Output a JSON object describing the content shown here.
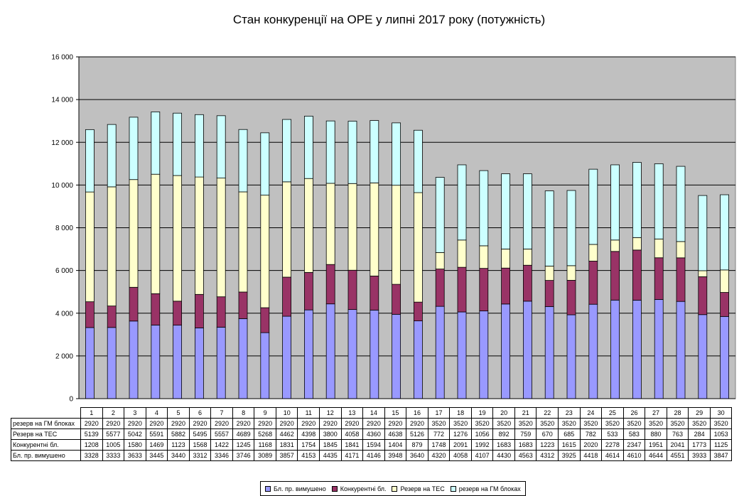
{
  "chart_data": {
    "type": "bar",
    "stacked": true,
    "title": "Стан конкуренції на ОРЕ  у липні  2017 року (потужність)",
    "ylim": [
      0,
      16000
    ],
    "yticks": [
      "0",
      "2 000",
      "4 000",
      "6 000",
      "8 000",
      "10 000",
      "12 000",
      "14 000",
      "16 000"
    ],
    "ytick_values": [
      0,
      2000,
      4000,
      6000,
      8000,
      10000,
      12000,
      14000,
      16000
    ],
    "grid": true,
    "legend_position": "bottom",
    "categories": [
      "1",
      "2",
      "3",
      "4",
      "5",
      "6",
      "7",
      "8",
      "9",
      "10",
      "11",
      "12",
      "13",
      "14",
      "15",
      "16",
      "17",
      "18",
      "19",
      "20",
      "21",
      "22",
      "23",
      "24",
      "25",
      "26",
      "27",
      "28",
      "29",
      "30"
    ],
    "series": [
      {
        "name": "Бл. пр. вимушено",
        "color": "#9999ff",
        "values": [
          3328,
          3333,
          3633,
          3445,
          3440,
          3312,
          3346,
          3746,
          3089,
          3857,
          4153,
          4435,
          4171,
          4146,
          3948,
          3640,
          4320,
          4058,
          4107,
          4430,
          4563,
          4312,
          3925,
          4418,
          4614,
          4610,
          4644,
          4551,
          3933,
          3847
        ]
      },
      {
        "name": "Конкурентні бл.",
        "color": "#993366",
        "values": [
          1208,
          1005,
          1580,
          1469,
          1123,
          1568,
          1422,
          1245,
          1168,
          1831,
          1754,
          1845,
          1841,
          1594,
          1404,
          879,
          1748,
          2091,
          1992,
          1683,
          1683,
          1223,
          1615,
          2020,
          2278,
          2347,
          1951,
          2041,
          1773,
          1125
        ]
      },
      {
        "name": "Резерв на ТЕС",
        "color": "#ffffcc",
        "values": [
          5139,
          5577,
          5042,
          5591,
          5882,
          5495,
          5557,
          4689,
          5268,
          4462,
          4398,
          3800,
          4058,
          4360,
          4638,
          5126,
          772,
          1276,
          1056,
          892,
          759,
          670,
          685,
          782,
          533,
          583,
          880,
          763,
          284,
          1053
        ]
      },
      {
        "name": "резерв на ГМ блоках",
        "color": "#ccffff",
        "values": [
          2920,
          2920,
          2920,
          2920,
          2920,
          2920,
          2920,
          2920,
          2920,
          2920,
          2920,
          2920,
          2920,
          2920,
          2920,
          2920,
          3520,
          3520,
          3520,
          3520,
          3520,
          3520,
          3520,
          3520,
          3520,
          3520,
          3520,
          3520,
          3520,
          3520
        ]
      }
    ],
    "table_rows": [
      "резерв на ГМ блоках",
      "Резерв на ТЕС",
      "Конкурентні бл.",
      "Бл. пр. вимушено"
    ],
    "legend_entries": [
      "Бл. пр. вимушено",
      "Конкурентні бл.",
      "Резерв на ТЕС",
      "резерв на ГМ блоках"
    ],
    "plot_background": "#c0c0c0"
  }
}
